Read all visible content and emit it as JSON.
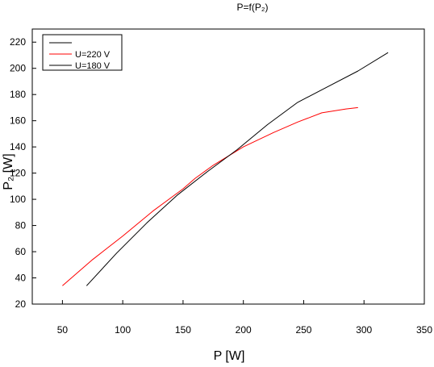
{
  "chart_data": {
    "type": "line",
    "title": "P=f(P₂)",
    "xlabel": "P [W]",
    "ylabel": "P₂ [W]",
    "xlim": [
      25,
      350
    ],
    "ylim": [
      20,
      230
    ],
    "x_ticks": [
      50,
      100,
      150,
      200,
      250,
      300,
      350
    ],
    "y_ticks": [
      20,
      40,
      60,
      80,
      100,
      120,
      140,
      160,
      180,
      200,
      220
    ],
    "x_tick_labels": [
      "50",
      "100",
      "150",
      "200",
      "250",
      "300",
      "350"
    ],
    "y_tick_labels": [
      "20",
      "40",
      "60",
      "80",
      "100",
      "120",
      "140",
      "160",
      "180",
      "200",
      "220"
    ],
    "grid": false,
    "legend_position": "top-left",
    "legend_entries": [
      {
        "label": "",
        "color": "#000000"
      },
      {
        "label": "U=220 V",
        "color": "#ff0000"
      },
      {
        "label": "U=180 V",
        "color": "#000000"
      }
    ],
    "series": [
      {
        "name": "U=220 V",
        "color": "#ff0000",
        "x": [
          50,
          75,
          100,
          125,
          150,
          160,
          175,
          200,
          225,
          245,
          265,
          285,
          295
        ],
        "y": [
          34,
          54,
          72,
          91,
          108,
          116,
          126,
          140,
          151,
          159,
          166,
          169,
          170
        ]
      },
      {
        "name": "U=180 V",
        "color": "#000000",
        "x": [
          70,
          95,
          120,
          145,
          170,
          195,
          220,
          245,
          270,
          295,
          320
        ],
        "y": [
          34,
          59,
          82,
          103,
          121,
          138,
          157,
          174,
          186,
          198,
          212
        ]
      }
    ]
  }
}
